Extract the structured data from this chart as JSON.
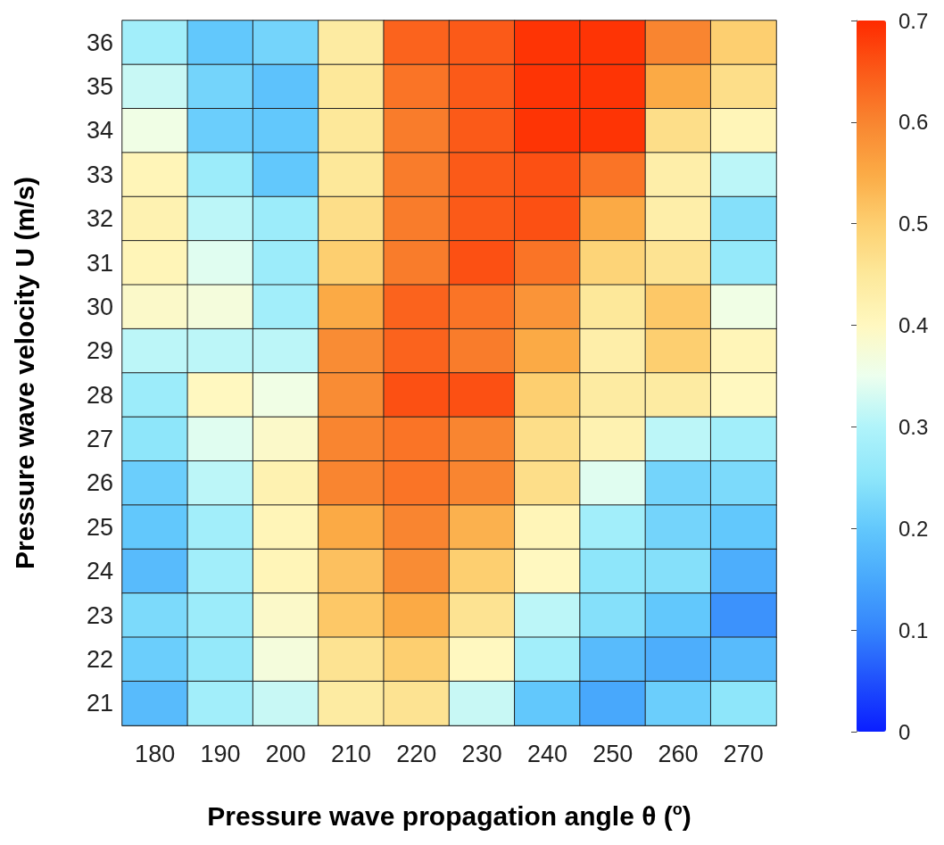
{
  "chart_data": {
    "type": "heatmap",
    "xlabel": "Pressure wave propagation angle θ ($^{o}$)",
    "ylabel": "Pressure wave velocity U (m/s)",
    "categories": [
      "180",
      "190",
      "200",
      "210",
      "220",
      "230",
      "240",
      "250",
      "260",
      "270"
    ],
    "y_categories": [
      "36",
      "35",
      "34",
      "33",
      "32",
      "31",
      "30",
      "29",
      "28",
      "27",
      "26",
      "25",
      "24",
      "23",
      "22",
      "21"
    ],
    "cells": [
      [
        0.28,
        0.2,
        0.22,
        0.44,
        0.64,
        0.65,
        0.69,
        0.69,
        0.6,
        0.5
      ],
      [
        0.32,
        0.22,
        0.19,
        0.45,
        0.62,
        0.65,
        0.69,
        0.69,
        0.55,
        0.47
      ],
      [
        0.36,
        0.21,
        0.2,
        0.45,
        0.61,
        0.65,
        0.69,
        0.69,
        0.47,
        0.41
      ],
      [
        0.41,
        0.27,
        0.2,
        0.45,
        0.61,
        0.65,
        0.66,
        0.62,
        0.43,
        0.31
      ],
      [
        0.42,
        0.31,
        0.27,
        0.47,
        0.61,
        0.65,
        0.66,
        0.55,
        0.43,
        0.24
      ],
      [
        0.41,
        0.34,
        0.27,
        0.5,
        0.61,
        0.66,
        0.62,
        0.49,
        0.46,
        0.26
      ],
      [
        0.39,
        0.37,
        0.28,
        0.55,
        0.64,
        0.62,
        0.58,
        0.45,
        0.51,
        0.36
      ],
      [
        0.31,
        0.31,
        0.31,
        0.59,
        0.64,
        0.61,
        0.55,
        0.43,
        0.5,
        0.41
      ],
      [
        0.27,
        0.4,
        0.36,
        0.59,
        0.66,
        0.66,
        0.5,
        0.44,
        0.44,
        0.4
      ],
      [
        0.25,
        0.34,
        0.39,
        0.6,
        0.62,
        0.6,
        0.47,
        0.42,
        0.31,
        0.28
      ],
      [
        0.21,
        0.31,
        0.42,
        0.6,
        0.62,
        0.6,
        0.47,
        0.34,
        0.22,
        0.23
      ],
      [
        0.2,
        0.28,
        0.41,
        0.55,
        0.6,
        0.54,
        0.41,
        0.28,
        0.22,
        0.2
      ],
      [
        0.18,
        0.28,
        0.41,
        0.52,
        0.59,
        0.5,
        0.4,
        0.25,
        0.24,
        0.16
      ],
      [
        0.23,
        0.27,
        0.39,
        0.51,
        0.55,
        0.46,
        0.31,
        0.24,
        0.2,
        0.12
      ],
      [
        0.21,
        0.26,
        0.37,
        0.46,
        0.5,
        0.4,
        0.28,
        0.18,
        0.16,
        0.18
      ],
      [
        0.18,
        0.28,
        0.32,
        0.44,
        0.46,
        0.32,
        0.2,
        0.15,
        0.21,
        0.25
      ]
    ],
    "clim": [
      0,
      0.7
    ],
    "cticks": [
      0,
      0.1,
      0.2,
      0.3,
      0.4,
      0.5,
      0.6,
      0.7
    ]
  }
}
